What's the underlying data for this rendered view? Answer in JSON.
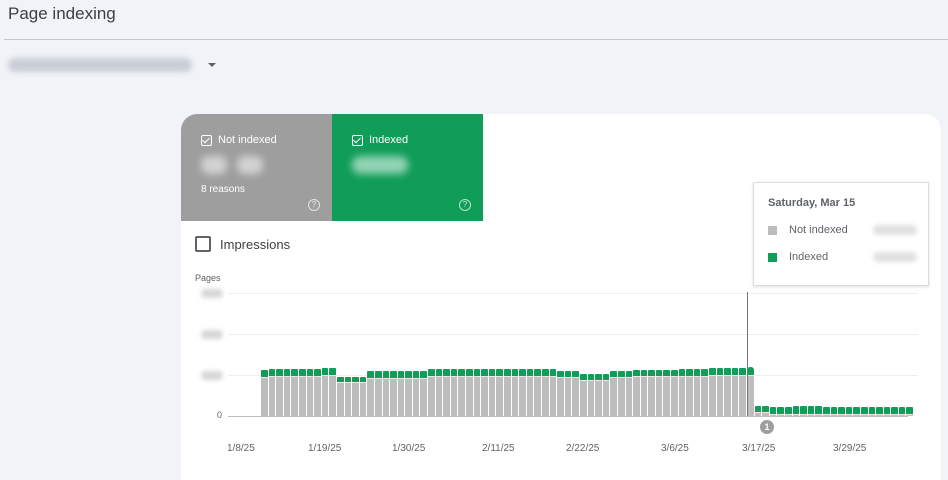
{
  "header": {
    "title": "Page indexing",
    "property_selector": {
      "value_blurred": true,
      "caret_icon": "caret-down-icon"
    }
  },
  "summary_tiles": [
    {
      "id": "not-indexed",
      "label": "Not indexed",
      "checked": true,
      "value_blurred": true,
      "subtext": "8 reasons",
      "color": "#9e9e9e",
      "help_icon": "help-circle-icon"
    },
    {
      "id": "indexed",
      "label": "Indexed",
      "checked": true,
      "value_blurred": true,
      "color": "#0f9d58",
      "help_icon": "help-circle-icon"
    }
  ],
  "impressions_toggle": {
    "label": "Impressions",
    "checked": false
  },
  "tooltip": {
    "date": "Saturday, Mar 15",
    "rows": [
      {
        "label": "Not indexed",
        "color": "#bdbdbd",
        "value_blurred": true
      },
      {
        "label": "Indexed",
        "color": "#0f9d58",
        "value_blurred": true
      }
    ]
  },
  "annotation": {
    "label": "1",
    "date": "3/15/25"
  },
  "colors": {
    "indexed": "#0f9d58",
    "not_indexed": "#bdbdbd",
    "background": "#f1f3f8"
  },
  "chart_data": {
    "type": "bar",
    "stacked": true,
    "title": "",
    "ylabel": "Pages",
    "xlabel": "",
    "y_ticks": [
      "0",
      "(blurred)",
      "(blurred)",
      "(blurred)"
    ],
    "y_unit_note": "Values in gridline units x100 (tick labels blurred; 100 = first gridline)",
    "ylim": [
      0,
      300
    ],
    "x_tick_labels": [
      "1/8/25",
      "1/19/25",
      "1/30/25",
      "2/11/25",
      "2/22/25",
      "3/6/25",
      "3/17/25",
      "3/29/25"
    ],
    "grid": true,
    "legend": "tiles-top",
    "highlight_index": 64,
    "series": [
      {
        "name": "Not indexed",
        "color": "#bdbdbd",
        "values": [
          240,
          245,
          245,
          245,
          245,
          245,
          245,
          245,
          248,
          248,
          205,
          205,
          205,
          205,
          230,
          230,
          230,
          230,
          230,
          230,
          230,
          232,
          245,
          245,
          245,
          245,
          245,
          245,
          245,
          245,
          245,
          245,
          245,
          245,
          245,
          245,
          245,
          245,
          245,
          236,
          236,
          236,
          220,
          220,
          220,
          220,
          238,
          238,
          238,
          242,
          242,
          242,
          242,
          242,
          242,
          245,
          245,
          245,
          245,
          250,
          250,
          250,
          250,
          250,
          252,
          25,
          25,
          10,
          10,
          10,
          12,
          12,
          12,
          12,
          10,
          10,
          10,
          12,
          12,
          12,
          10,
          10,
          10,
          12,
          12,
          12
        ]
      },
      {
        "name": "Indexed",
        "color": "#0f9d58",
        "values": [
          40,
          43,
          43,
          43,
          43,
          43,
          43,
          43,
          43,
          43,
          32,
          32,
          32,
          32,
          42,
          42,
          42,
          42,
          42,
          42,
          42,
          42,
          43,
          43,
          43,
          43,
          43,
          43,
          43,
          43,
          43,
          43,
          43,
          43,
          43,
          43,
          43,
          43,
          43,
          40,
          40,
          40,
          37,
          37,
          37,
          37,
          38,
          38,
          38,
          40,
          40,
          40,
          40,
          40,
          40,
          42,
          42,
          42,
          42,
          42,
          42,
          42,
          42,
          42,
          48,
          35,
          35,
          45,
          45,
          45,
          49,
          49,
          49,
          49,
          48,
          48,
          48,
          46,
          46,
          46,
          48,
          48,
          48,
          45,
          45,
          45
        ]
      }
    ]
  }
}
